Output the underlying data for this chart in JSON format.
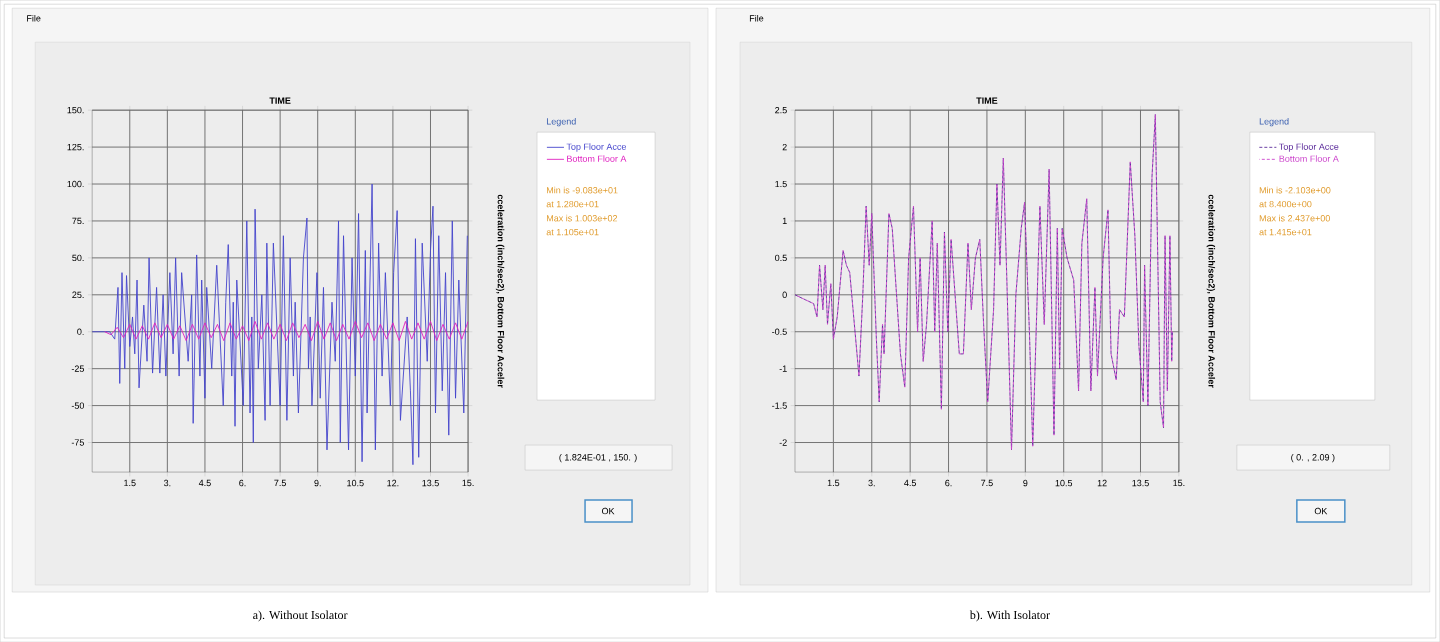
{
  "chart_data": [
    {
      "type": "line",
      "xlabel": "TIME",
      "ylabel": "cceleration (inch/sec2), Bottom Floor Acceler",
      "xlim": [
        0,
        15
      ],
      "ylim": [
        -95,
        150
      ],
      "xticks": [
        1.5,
        {
          "value": 3,
          "label": "3."
        },
        4.5,
        {
          "value": 6,
          "label": "6."
        },
        7.5,
        {
          "value": 9,
          "label": "9."
        },
        10.5,
        {
          "value": 12,
          "label": "12."
        },
        13.5,
        {
          "value": 15,
          "label": "15."
        }
      ],
      "yticks": [
        {
          "value": 150,
          "label": "150."
        },
        {
          "value": 125,
          "label": "125."
        },
        {
          "value": 100,
          "label": "100."
        },
        {
          "value": 75,
          "label": "75."
        },
        {
          "value": 50,
          "label": "50."
        },
        {
          "value": 25,
          "label": "25."
        },
        {
          "value": 0,
          "label": "0."
        },
        -25,
        -50,
        -75
      ],
      "grid": true,
      "legend": "right",
      "line_style": "solid",
      "annotations": [
        "File",
        "Legend",
        "Min is -9.083e+01",
        "at 1.280e+01",
        "Max is 1.003e+02",
        "at 1.105e+01",
        "( 1.824E-01 , 150. )",
        "OK",
        "a). Without Isolator"
      ],
      "series": [
        {
          "name": "Top Floor Acce",
          "color": "#4444cc",
          "x": [
            0,
            0.7,
            0.9,
            1.03,
            1.1,
            1.19,
            1.3,
            1.37,
            1.5,
            1.61,
            1.7,
            1.79,
            1.87,
            2.06,
            2.19,
            2.27,
            2.41,
            2.57,
            2.7,
            2.83,
            2.94,
            3.1,
            3.23,
            3.33,
            3.47,
            3.57,
            3.83,
            3.97,
            4.03,
            4.17,
            4.3,
            4.37,
            4.5,
            4.57,
            4.77,
            4.97,
            5.23,
            5.33,
            5.43,
            5.57,
            5.63,
            5.7,
            5.77,
            6.03,
            6.17,
            6.3,
            6.37,
            6.43,
            6.5,
            6.63,
            6.77,
            6.9,
            6.97,
            7.1,
            7.23,
            7.5,
            7.63,
            7.77,
            7.9,
            8.03,
            8.1,
            8.23,
            8.43,
            8.57,
            8.63,
            8.7,
            8.77,
            8.97,
            9.1,
            9.23,
            9.37,
            9.57,
            9.7,
            9.83,
            9.9,
            10.03,
            10.23,
            10.37,
            10.5,
            10.63,
            10.77,
            10.9,
            10.97,
            11.17,
            11.3,
            11.43,
            11.57,
            11.7,
            11.9,
            12.03,
            12.17,
            12.3,
            12.57,
            12.7,
            12.8,
            12.9,
            13.03,
            13.17,
            13.37,
            13.5,
            13.6,
            13.7,
            13.83,
            13.97,
            14.1,
            14.23,
            14.37,
            14.5,
            14.63,
            14.83,
            14.97
          ],
          "values": [
            0,
            0,
            -5,
            30,
            -35,
            40,
            -25,
            38,
            -10,
            10,
            -15,
            35,
            -38,
            18,
            -20,
            50,
            -28,
            30,
            -28,
            25,
            -30,
            40,
            -15,
            50,
            -30,
            40,
            -20,
            25,
            -62,
            52,
            -30,
            35,
            -45,
            30,
            -25,
            45,
            -50,
            20,
            59,
            -30,
            20,
            -64,
            35,
            -50,
            75,
            -55,
            10,
            -75,
            83,
            -25,
            25,
            -60,
            60,
            -50,
            60,
            -50,
            65,
            -60,
            50,
            -30,
            20,
            -55,
            50,
            77,
            -25,
            10,
            -50,
            40,
            -45,
            30,
            -80,
            20,
            -20,
            75,
            -75,
            65,
            -80,
            50,
            -30,
            80,
            -88,
            55,
            -55,
            100,
            -80,
            60,
            -30,
            40,
            -50,
            40,
            82,
            -60,
            10,
            -40,
            -90,
            63,
            -85,
            60,
            -20,
            55,
            85,
            -55,
            65,
            -40,
            40,
            -70,
            75,
            -45,
            35,
            -55,
            65
          ]
        },
        {
          "name": "Bottom Floor A",
          "color": "#e020c0",
          "x": [
            0.5,
            0.75,
            1,
            1.25,
            1.5,
            1.75,
            2,
            2.25,
            2.5,
            2.75,
            3,
            3.25,
            3.5,
            3.75,
            4,
            4.25,
            4.5,
            4.75,
            5,
            5.25,
            5.5,
            5.75,
            6,
            6.25,
            6.5,
            6.75,
            7,
            7.25,
            7.5,
            7.75,
            8,
            8.25,
            8.5,
            8.75,
            9,
            9.25,
            9.5,
            9.75,
            10,
            10.25,
            10.5,
            10.75,
            11,
            11.25,
            11.5,
            11.75,
            12,
            12.25,
            12.5,
            12.75,
            13,
            13.25,
            13.5,
            13.75,
            14,
            14.25,
            14.5,
            14.75,
            15
          ],
          "values": [
            0,
            -2,
            3,
            -4,
            5,
            -5,
            4,
            -5,
            6,
            -4,
            5,
            -5,
            4,
            -6,
            5,
            -5,
            6,
            -4,
            5,
            -6,
            6,
            -5,
            4,
            -6,
            7,
            -5,
            6,
            -5,
            5,
            -6,
            6,
            -4,
            5,
            -6,
            7,
            -5,
            6,
            -6,
            5,
            -5,
            7,
            -4,
            6,
            -6,
            5,
            -5,
            6,
            -6,
            7,
            -5,
            6,
            -5,
            7,
            -6,
            5,
            -5,
            6,
            -5,
            7
          ]
        }
      ]
    },
    {
      "type": "line",
      "xlabel": "TIME",
      "ylabel": "cceleration (inch/sec2), Bottom Floor Acceler",
      "xlim": [
        0,
        15
      ],
      "ylim": [
        -2.4,
        2.5
      ],
      "xticks": [
        1.5,
        {
          "value": 3,
          "label": "3."
        },
        4.5,
        {
          "value": 6,
          "label": "6."
        },
        7.5,
        9,
        10.5,
        12,
        13.5,
        {
          "value": 15,
          "label": "15."
        }
      ],
      "yticks": [
        2.5,
        2,
        1.5,
        1,
        0.5,
        0,
        -0.5,
        -1,
        -1.5,
        -2
      ],
      "grid": true,
      "legend": "right",
      "line_style": "dashed",
      "annotations": [
        "File",
        "Legend",
        "Min is -2.103e+00",
        "at 8.400e+00",
        "Max is 2.437e+00",
        "at 1.415e+01",
        "( 0. , 2.09 )",
        "OK",
        "b). With Isolator"
      ],
      "series": [
        {
          "name": "Top Floor Acce",
          "color": "#5a2a9a",
          "x": [
            0,
            0.42,
            0.73,
            0.86,
            0.96,
            1.09,
            1.18,
            1.27,
            1.4,
            1.5,
            1.65,
            1.88,
            2.01,
            2.14,
            2.5,
            2.65,
            2.78,
            2.9,
            3.0,
            3.18,
            3.29,
            3.42,
            3.48,
            3.67,
            3.8,
            3.93,
            4.12,
            4.29,
            4.44,
            4.63,
            4.79,
            4.89,
            5.01,
            5.14,
            5.36,
            5.46,
            5.56,
            5.72,
            5.84,
            5.97,
            6.1,
            6.42,
            6.58,
            6.76,
            6.89,
            7.05,
            7.22,
            7.37,
            7.53,
            7.76,
            7.89,
            8.01,
            8.14,
            8.27,
            8.46,
            8.63,
            8.84,
            8.97,
            9.16,
            9.29,
            9.44,
            9.57,
            9.74,
            9.93,
            10.12,
            10.25,
            10.34,
            10.44,
            10.63,
            10.89,
            11.08,
            11.21,
            11.4,
            11.56,
            11.72,
            11.82,
            12.04,
            12.23,
            12.35,
            12.55,
            12.68,
            12.87,
            13.1,
            13.28,
            13.44,
            13.61,
            13.66,
            13.79,
            13.95,
            14.08,
            14.27,
            14.4,
            14.46,
            14.55,
            14.65,
            14.72,
            14.75
          ],
          "values": [
            0,
            -0.07,
            -0.12,
            -0.3,
            0.4,
            -0.2,
            0.4,
            -0.4,
            0.15,
            -0.6,
            -0.3,
            0.6,
            0.4,
            0.3,
            -1.1,
            0,
            1.2,
            0.4,
            1.1,
            -0.6,
            -1.45,
            -0.4,
            -0.8,
            1.1,
            0.9,
            0.2,
            -0.8,
            -1.25,
            0.5,
            1.2,
            -0.5,
            0.5,
            -0.9,
            -0.4,
            1.0,
            -0.5,
            0.7,
            -1.55,
            0.85,
            -0.5,
            0.75,
            -0.8,
            -0.8,
            0.7,
            -0.2,
            0.5,
            0.75,
            -0.4,
            -1.45,
            -0.2,
            1.5,
            0.4,
            1.85,
            0.3,
            -2.1,
            0,
            0.9,
            1.25,
            -0.5,
            -2.05,
            -0.3,
            1.2,
            -0.4,
            1.7,
            -1.9,
            0.9,
            -1.0,
            0.9,
            0.5,
            0.2,
            -1.3,
            0.7,
            1.3,
            -1.3,
            0.1,
            -1.1,
            0.5,
            1.15,
            -0.8,
            -1.15,
            -0.2,
            -0.3,
            1.8,
            0.8,
            -0.7,
            -1.45,
            0.4,
            -1.5,
            1.6,
            2.44,
            -1.45,
            -1.8,
            0.8,
            -1.3,
            0.8,
            -0.9,
            -0.5
          ]
        },
        {
          "name": "Bottom Floor A",
          "color": "#cc44cc",
          "x": [
            0,
            0.42,
            0.73,
            0.86,
            0.96,
            1.09,
            1.18,
            1.27,
            1.4,
            1.5,
            1.65,
            1.88,
            2.01,
            2.14,
            2.5,
            2.65,
            2.78,
            2.9,
            3.0,
            3.18,
            3.29,
            3.42,
            3.48,
            3.67,
            3.8,
            3.93,
            4.12,
            4.29,
            4.44,
            4.63,
            4.79,
            4.89,
            5.01,
            5.14,
            5.36,
            5.46,
            5.56,
            5.72,
            5.84,
            5.97,
            6.1,
            6.42,
            6.58,
            6.76,
            6.89,
            7.05,
            7.22,
            7.37,
            7.53,
            7.76,
            7.89,
            8.01,
            8.14,
            8.27,
            8.46,
            8.63,
            8.84,
            8.97,
            9.16,
            9.29,
            9.44,
            9.57,
            9.74,
            9.93,
            10.12,
            10.25,
            10.34,
            10.44,
            10.63,
            10.89,
            11.08,
            11.21,
            11.4,
            11.56,
            11.72,
            11.82,
            12.04,
            12.23,
            12.35,
            12.55,
            12.68,
            12.87,
            13.1,
            13.28,
            13.44,
            13.61,
            13.66,
            13.79,
            13.95,
            14.08,
            14.27,
            14.4,
            14.46,
            14.55,
            14.65,
            14.72,
            14.75
          ],
          "values": [
            0,
            -0.07,
            -0.12,
            -0.3,
            0.4,
            -0.2,
            0.4,
            -0.4,
            0.15,
            -0.6,
            -0.3,
            0.6,
            0.4,
            0.3,
            -1.1,
            0,
            1.2,
            0.4,
            1.1,
            -0.6,
            -1.45,
            -0.4,
            -0.8,
            1.1,
            0.9,
            0.2,
            -0.8,
            -1.25,
            0.5,
            1.2,
            -0.5,
            0.5,
            -0.9,
            -0.4,
            1.0,
            -0.5,
            0.7,
            -1.55,
            0.85,
            -0.5,
            0.75,
            -0.8,
            -0.8,
            0.7,
            -0.2,
            0.5,
            0.75,
            -0.4,
            -1.45,
            -0.2,
            1.5,
            0.4,
            1.85,
            0.3,
            -2.1,
            0,
            0.9,
            1.25,
            -0.5,
            -2.05,
            -0.3,
            1.2,
            -0.4,
            1.7,
            -1.9,
            0.9,
            -1.0,
            0.9,
            0.5,
            0.2,
            -1.3,
            0.7,
            1.3,
            -1.3,
            0.1,
            -1.1,
            0.5,
            1.15,
            -0.8,
            -1.15,
            -0.2,
            -0.3,
            1.8,
            0.8,
            -0.7,
            -1.45,
            0.4,
            -1.5,
            1.6,
            2.44,
            -1.45,
            -1.8,
            0.8,
            -1.3,
            0.8,
            -0.9,
            -0.5
          ]
        }
      ]
    }
  ]
}
